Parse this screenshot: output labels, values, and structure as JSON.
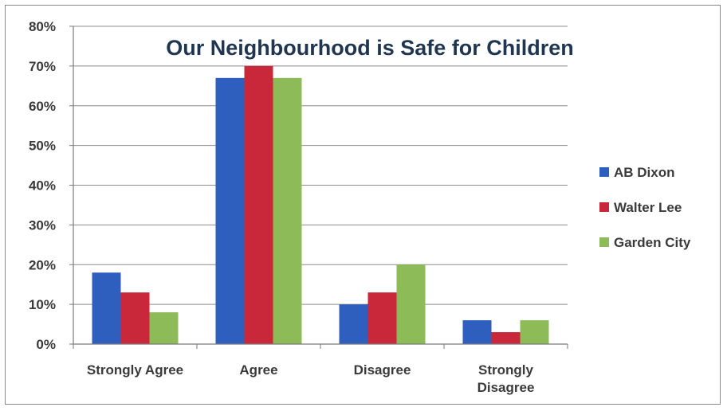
{
  "chart_data": {
    "type": "bar",
    "title": "Our Neighbourhood is Safe for Children",
    "categories": [
      "Strongly Agree",
      "Agree",
      "Disagree",
      "Strongly Disagree"
    ],
    "category_lines": [
      [
        "Strongly Agree"
      ],
      [
        "Agree"
      ],
      [
        "Disagree"
      ],
      [
        "Strongly",
        "Disagree"
      ]
    ],
    "series": [
      {
        "name": "AB Dixon",
        "color": "#2e5fbf",
        "values": [
          18,
          67,
          10,
          6
        ]
      },
      {
        "name": "Walter Lee",
        "color": "#c8283a",
        "values": [
          13,
          70,
          13,
          3
        ]
      },
      {
        "name": "Garden City",
        "color": "#8dbb58",
        "values": [
          8,
          67,
          20,
          6
        ]
      }
    ],
    "ylim": [
      0,
      80
    ],
    "yticks": [
      "0%",
      "10%",
      "20%",
      "30%",
      "40%",
      "50%",
      "60%",
      "70%",
      "80%"
    ],
    "ytick_values": [
      0,
      10,
      20,
      30,
      40,
      50,
      60,
      70,
      80
    ],
    "grid": true,
    "legend_position": "right"
  }
}
